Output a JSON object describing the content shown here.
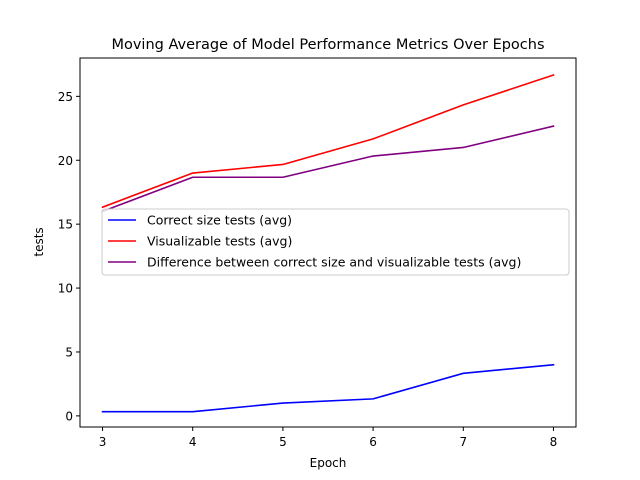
{
  "chart_data": {
    "type": "line",
    "title": "Moving Average of Model Performance Metrics Over Epochs",
    "xlabel": "Epoch",
    "ylabel": "tests",
    "x": [
      3,
      4,
      5,
      6,
      7,
      8
    ],
    "xlim": [
      2.75,
      8.25
    ],
    "ylim": [
      -0.87,
      28
    ],
    "xticks": [
      "3",
      "4",
      "5",
      "6",
      "7",
      "8"
    ],
    "yticks": [
      0,
      5,
      10,
      15,
      20,
      25
    ],
    "ytick_labels": [
      "0",
      "5",
      "10",
      "15",
      "20",
      "25"
    ],
    "grid": false,
    "legend_position": "center-right",
    "series": [
      {
        "name": "Correct size tests (avg)",
        "color": "#0000ff",
        "values": [
          0.33,
          0.33,
          1.0,
          1.33,
          3.33,
          4.0
        ]
      },
      {
        "name": "Visualizable tests (avg)",
        "color": "#ff0000",
        "values": [
          16.33,
          19.0,
          19.67,
          21.67,
          24.33,
          26.67
        ]
      },
      {
        "name": "Difference between correct size and visualizable tests (avg)",
        "color": "#800080",
        "values": [
          16.0,
          18.67,
          18.67,
          20.33,
          21.0,
          22.67
        ]
      }
    ]
  }
}
